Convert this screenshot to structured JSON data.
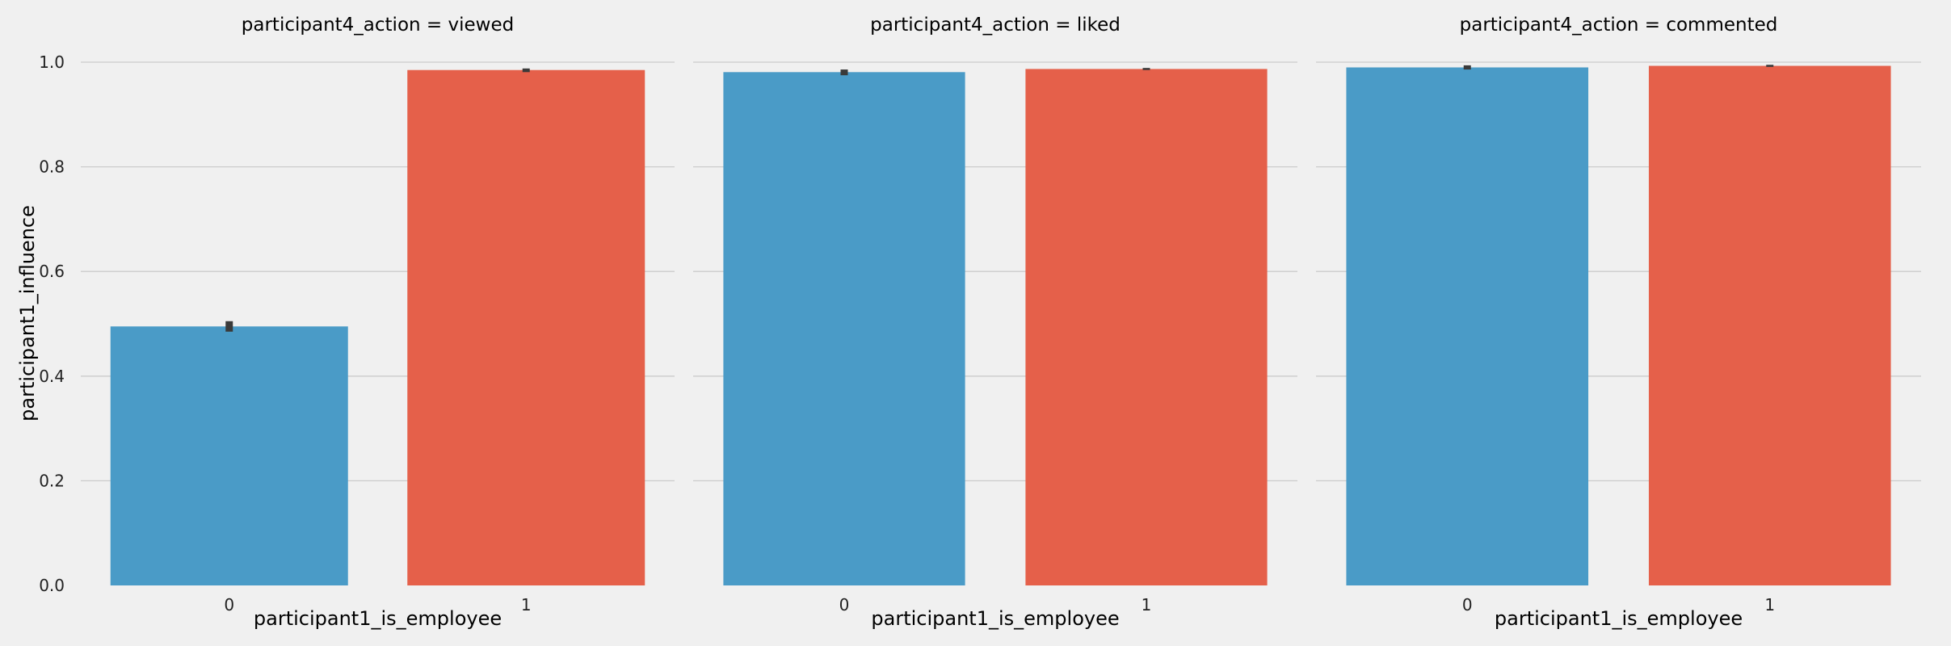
{
  "chart_data": {
    "type": "bar",
    "facet_variable": "participant4_action",
    "ylabel": "participant1_influence",
    "ylim": [
      0,
      1.0
    ],
    "yticks": [
      "0.0",
      "0.2",
      "0.4",
      "0.6",
      "0.8",
      "1.0"
    ],
    "grid": true,
    "colors": [
      "#4a9bc7",
      "#e5604a"
    ],
    "error_bar_color": "#3a3a3a",
    "panels": [
      {
        "title": "participant4_action = viewed",
        "xlabel": "participant1_is_employee",
        "categories": [
          "0",
          "1"
        ],
        "values": [
          0.495,
          0.985
        ],
        "err_low": [
          0.485,
          0.981
        ],
        "err_high": [
          0.505,
          0.988
        ]
      },
      {
        "title": "participant4_action = liked",
        "xlabel": "participant1_is_employee",
        "categories": [
          "0",
          "1"
        ],
        "values": [
          0.981,
          0.987
        ],
        "err_low": [
          0.975,
          0.985
        ],
        "err_high": [
          0.986,
          0.989
        ]
      },
      {
        "title": "participant4_action = commented",
        "xlabel": "participant1_is_employee",
        "categories": [
          "0",
          "1"
        ],
        "values": [
          0.99,
          0.993
        ],
        "err_low": [
          0.986,
          0.991
        ],
        "err_high": [
          0.994,
          0.995
        ]
      }
    ]
  }
}
